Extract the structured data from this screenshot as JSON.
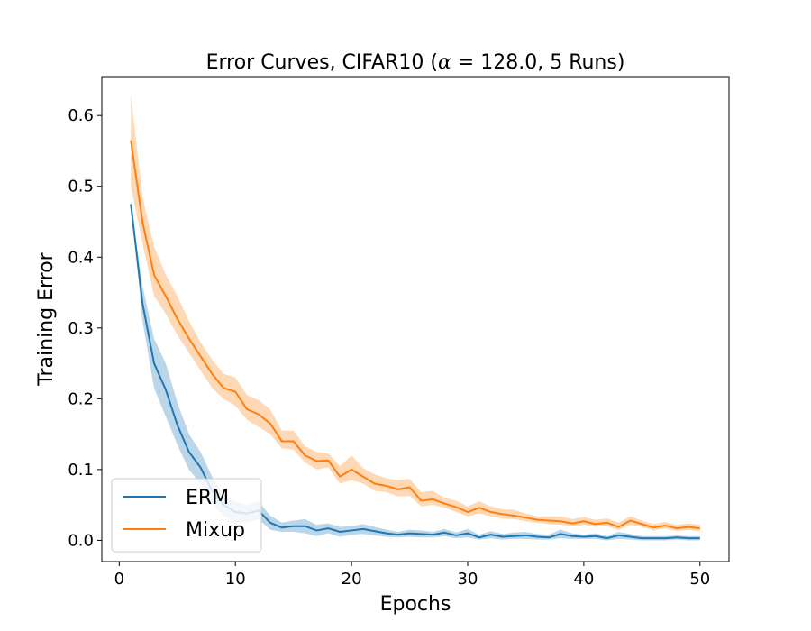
{
  "chart_data": {
    "type": "line",
    "title_prefix": "Error Curves, CIFAR10 (",
    "title_alpha": "α",
    "title_suffix": " = 128.0, 5 Runs)",
    "xlabel": "Epochs",
    "ylabel": "Training Error",
    "xlim": [
      -1.5,
      52.5
    ],
    "ylim": [
      -0.03,
      0.655
    ],
    "xticks": [
      0,
      10,
      20,
      30,
      40,
      50
    ],
    "xtick_labels": [
      "0",
      "10",
      "20",
      "30",
      "40",
      "50"
    ],
    "yticks": [
      0.0,
      0.1,
      0.2,
      0.3,
      0.4,
      0.5,
      0.6
    ],
    "ytick_labels": [
      "0.0",
      "0.1",
      "0.2",
      "0.3",
      "0.4",
      "0.5",
      "0.6"
    ],
    "grid": false,
    "legend_position": "lower-left",
    "x": [
      1,
      2,
      3,
      4,
      5,
      6,
      7,
      8,
      9,
      10,
      11,
      12,
      13,
      14,
      15,
      16,
      17,
      18,
      19,
      20,
      21,
      22,
      23,
      24,
      25,
      26,
      27,
      28,
      29,
      30,
      31,
      32,
      33,
      34,
      35,
      36,
      37,
      38,
      39,
      40,
      41,
      42,
      43,
      44,
      45,
      46,
      47,
      48,
      49,
      50
    ],
    "series": [
      {
        "name": "ERM",
        "color": "#1f77b4",
        "values": [
          0.475,
          0.335,
          0.25,
          0.213,
          0.163,
          0.125,
          0.103,
          0.07,
          0.05,
          0.04,
          0.038,
          0.042,
          0.025,
          0.018,
          0.02,
          0.02,
          0.014,
          0.017,
          0.012,
          0.014,
          0.016,
          0.013,
          0.01,
          0.008,
          0.01,
          0.009,
          0.008,
          0.011,
          0.007,
          0.01,
          0.004,
          0.008,
          0.005,
          0.006,
          0.007,
          0.005,
          0.004,
          0.009,
          0.006,
          0.005,
          0.006,
          0.003,
          0.007,
          0.005,
          0.003,
          0.003,
          0.003,
          0.004,
          0.003,
          0.003
        ],
        "band_low": [
          0.475,
          0.31,
          0.215,
          0.175,
          0.135,
          0.1,
          0.08,
          0.052,
          0.035,
          0.025,
          0.025,
          0.03,
          0.015,
          0.012,
          0.012,
          0.01,
          0.006,
          0.01,
          0.005,
          0.008,
          0.009,
          0.007,
          0.005,
          0.004,
          0.005,
          0.004,
          0.004,
          0.006,
          0.003,
          0.004,
          0.001,
          0.003,
          0.001,
          0.002,
          0.002,
          0.001,
          0.001,
          0.003,
          0.002,
          0.002,
          0.002,
          0.0,
          0.002,
          0.001,
          0.0,
          0.0,
          0.0,
          0.001,
          0.0,
          0.0
        ],
        "band_high": [
          0.475,
          0.36,
          0.285,
          0.25,
          0.195,
          0.15,
          0.125,
          0.09,
          0.065,
          0.055,
          0.05,
          0.055,
          0.035,
          0.025,
          0.028,
          0.03,
          0.022,
          0.024,
          0.019,
          0.02,
          0.023,
          0.019,
          0.015,
          0.012,
          0.015,
          0.014,
          0.012,
          0.016,
          0.011,
          0.016,
          0.008,
          0.013,
          0.009,
          0.011,
          0.012,
          0.009,
          0.008,
          0.015,
          0.01,
          0.008,
          0.01,
          0.006,
          0.012,
          0.009,
          0.006,
          0.006,
          0.006,
          0.007,
          0.006,
          0.006
        ]
      },
      {
        "name": "Mixup",
        "color": "#ff7f0e",
        "values": [
          0.565,
          0.45,
          0.375,
          0.345,
          0.313,
          0.285,
          0.26,
          0.235,
          0.215,
          0.21,
          0.185,
          0.178,
          0.165,
          0.14,
          0.14,
          0.12,
          0.112,
          0.113,
          0.09,
          0.1,
          0.09,
          0.08,
          0.077,
          0.072,
          0.075,
          0.056,
          0.058,
          0.052,
          0.047,
          0.04,
          0.046,
          0.04,
          0.037,
          0.035,
          0.032,
          0.029,
          0.028,
          0.027,
          0.024,
          0.027,
          0.023,
          0.025,
          0.019,
          0.028,
          0.023,
          0.018,
          0.021,
          0.017,
          0.019,
          0.017
        ],
        "band_low": [
          0.5,
          0.42,
          0.345,
          0.32,
          0.29,
          0.265,
          0.24,
          0.215,
          0.2,
          0.19,
          0.17,
          0.16,
          0.15,
          0.13,
          0.128,
          0.11,
          0.1,
          0.103,
          0.08,
          0.085,
          0.08,
          0.07,
          0.068,
          0.062,
          0.063,
          0.048,
          0.05,
          0.046,
          0.04,
          0.034,
          0.038,
          0.034,
          0.031,
          0.03,
          0.027,
          0.025,
          0.023,
          0.022,
          0.02,
          0.022,
          0.019,
          0.02,
          0.015,
          0.022,
          0.019,
          0.014,
          0.017,
          0.013,
          0.015,
          0.013
        ],
        "band_high": [
          0.63,
          0.485,
          0.415,
          0.375,
          0.345,
          0.31,
          0.28,
          0.255,
          0.235,
          0.23,
          0.205,
          0.198,
          0.185,
          0.155,
          0.155,
          0.133,
          0.125,
          0.123,
          0.105,
          0.12,
          0.102,
          0.093,
          0.088,
          0.085,
          0.087,
          0.068,
          0.07,
          0.06,
          0.056,
          0.048,
          0.055,
          0.048,
          0.044,
          0.043,
          0.038,
          0.034,
          0.034,
          0.034,
          0.03,
          0.033,
          0.029,
          0.031,
          0.025,
          0.034,
          0.028,
          0.023,
          0.026,
          0.022,
          0.024,
          0.022
        ]
      }
    ]
  }
}
